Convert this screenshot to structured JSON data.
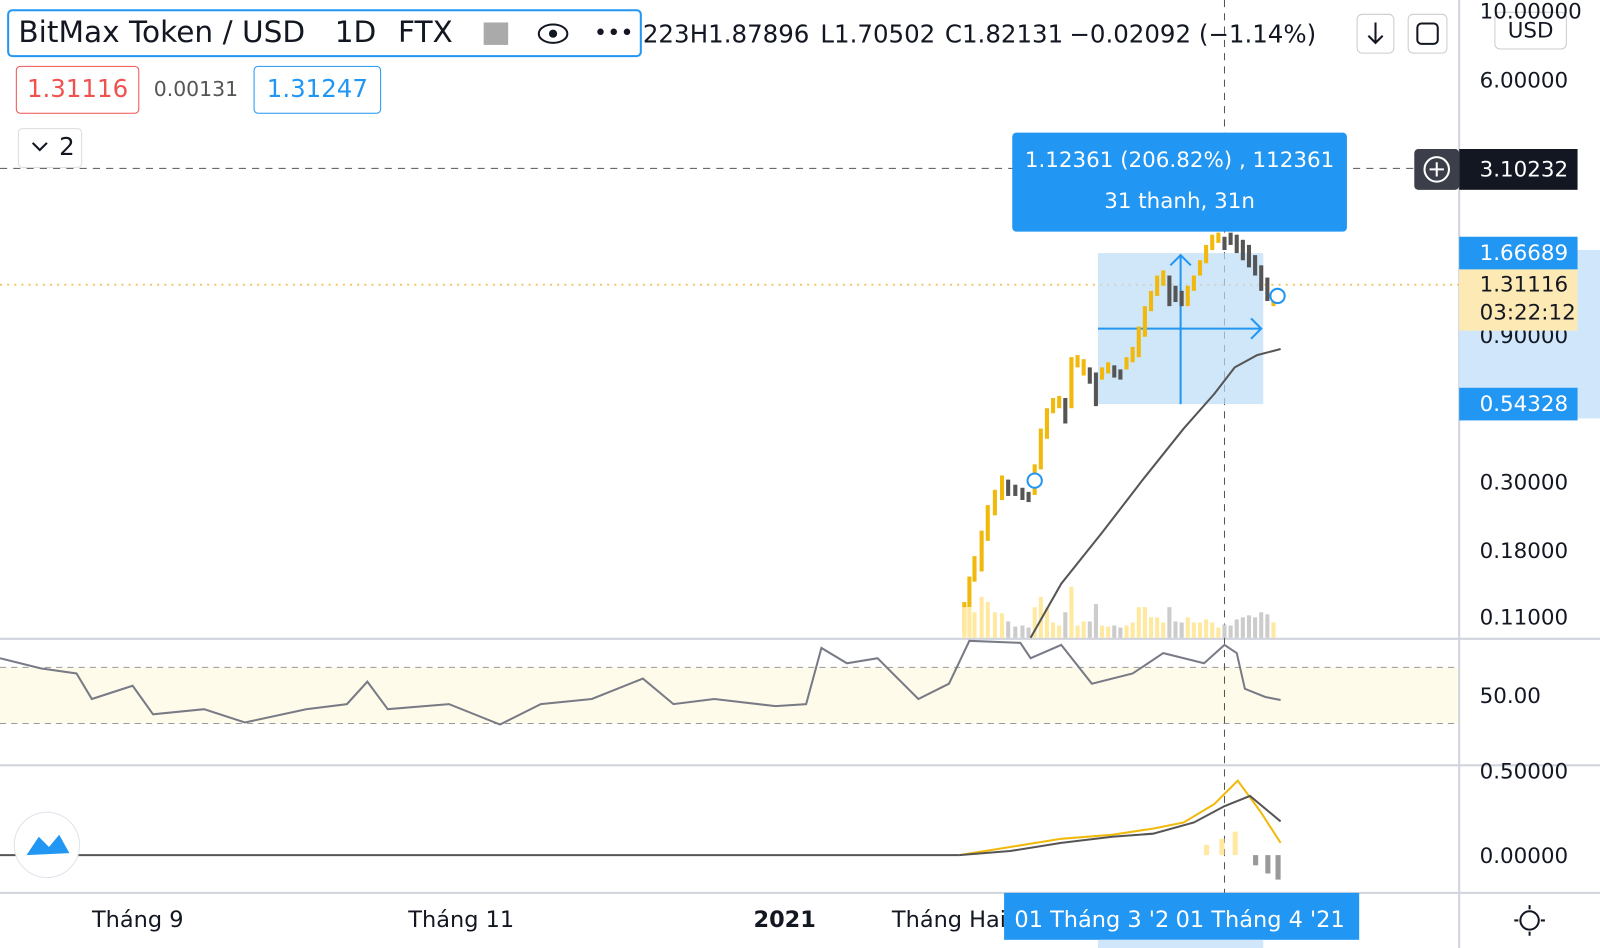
{
  "header": {
    "symbol": "BitMax Token / USD",
    "interval": "1D",
    "exchange": "FTX",
    "ohlc": [
      "223",
      "H1.87896",
      "L1.70502",
      "C1.82131",
      "−0.02092 (−1.14%)"
    ]
  },
  "trade": {
    "sell": "1.31116",
    "spread": "0.00131",
    "buy": "1.31247"
  },
  "collapse": "2",
  "measure": {
    "line1": "1.12361 (206.82%) , 112361",
    "line2": "31 thanh, 31n"
  },
  "price_axis": {
    "currency": "USD",
    "labels": [
      "10.00000",
      "6.00000",
      "0.90000",
      "0.30000",
      "0.18000",
      "0.11000"
    ],
    "crosshair": "3.10232",
    "range_high": "1.66689",
    "last": "1.31116",
    "countdown": "03:22:12",
    "range_low": "0.54328"
  },
  "rsi_axis": [
    "50.00"
  ],
  "macd_axis": [
    "0.50000",
    "0.00000"
  ],
  "time_axis": {
    "labels": [
      "Tháng 9",
      "Tháng 11",
      "2021",
      "Tháng Hai"
    ],
    "range_start": "01 Tháng 3 '2",
    "range_end": "01 Tháng 4 '21"
  }
}
